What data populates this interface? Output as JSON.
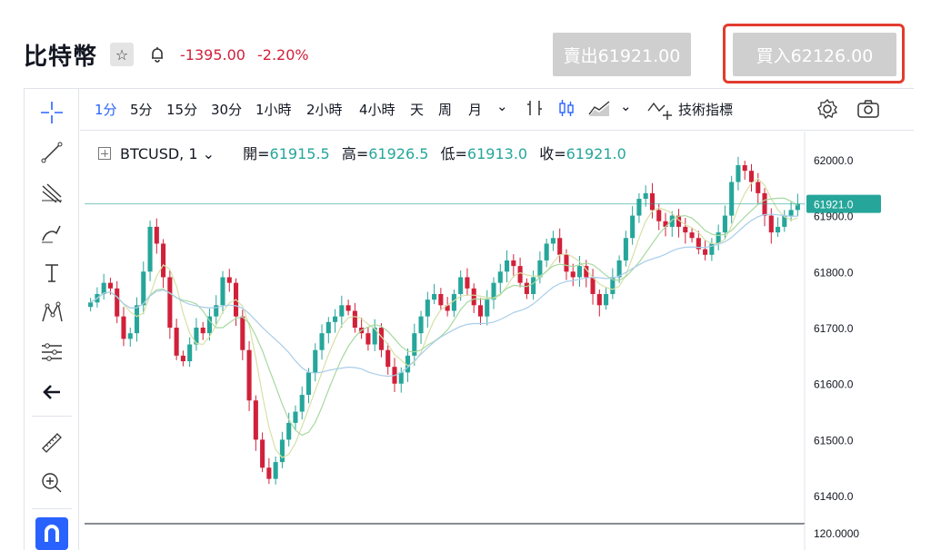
{
  "header": {
    "title": "比特幣",
    "change_abs": "-1395.00",
    "change_pct": "-2.20%",
    "sell_label": "賣出61921.00",
    "buy_label": "買入62126.00"
  },
  "toolbar": {
    "intervals": [
      "1分",
      "5分",
      "15分",
      "30分",
      "1小時",
      "2小時",
      "4小時",
      "天",
      "周",
      "月"
    ],
    "selected_interval": "1分",
    "indicators_label": "技術指標"
  },
  "legend": {
    "symbol": "BTCUSD, 1",
    "open_label": "開=",
    "open": "61915.5",
    "high_label": "高=",
    "high": "61926.5",
    "low_label": "低=",
    "low": "61913.0",
    "close_label": "收=",
    "close": "61921.0"
  },
  "colors": {
    "up": "#26a69a",
    "down": "#d1213a",
    "ma_fast": "#d7e0a6",
    "ma_mid": "#a7d9a0",
    "ma_slow": "#a9cde9",
    "accent": "#2962ff"
  },
  "chart_data": {
    "type": "line",
    "title": "",
    "y_ticks": [
      "62000.0",
      "61900.0",
      "61800.0",
      "61700.0",
      "61600.0",
      "61500.0",
      "61400.0"
    ],
    "last_price": "61921.0",
    "sub_pane_tick": "120.0000",
    "ylim": [
      61350,
      62050
    ],
    "closes": [
      61745,
      61760,
      61780,
      61770,
      61720,
      61680,
      61690,
      61740,
      61800,
      61880,
      61850,
      61790,
      61700,
      61650,
      61640,
      61670,
      61700,
      61690,
      61720,
      61740,
      61790,
      61780,
      61720,
      61660,
      61570,
      61500,
      61450,
      61430,
      61460,
      61500,
      61530,
      61550,
      61580,
      61620,
      61660,
      61690,
      61710,
      61720,
      61740,
      61730,
      61700,
      61690,
      61670,
      61700,
      61660,
      61630,
      61600,
      61620,
      61650,
      61690,
      61720,
      61750,
      61760,
      61740,
      61730,
      61760,
      61790,
      61770,
      61740,
      61720,
      61750,
      61780,
      61800,
      61820,
      61810,
      61780,
      61760,
      61790,
      61820,
      61850,
      61860,
      61830,
      61800,
      61790,
      61810,
      61790,
      61760,
      61740,
      61760,
      61790,
      61820,
      61860,
      61900,
      61930,
      61940,
      61910,
      61890,
      61880,
      61900,
      61880,
      61870,
      61860,
      61840,
      61830,
      61850,
      61870,
      61900,
      61960,
      61990,
      61980,
      61960,
      61940,
      61900,
      61870,
      61880,
      61900,
      61910,
      61921
    ]
  }
}
